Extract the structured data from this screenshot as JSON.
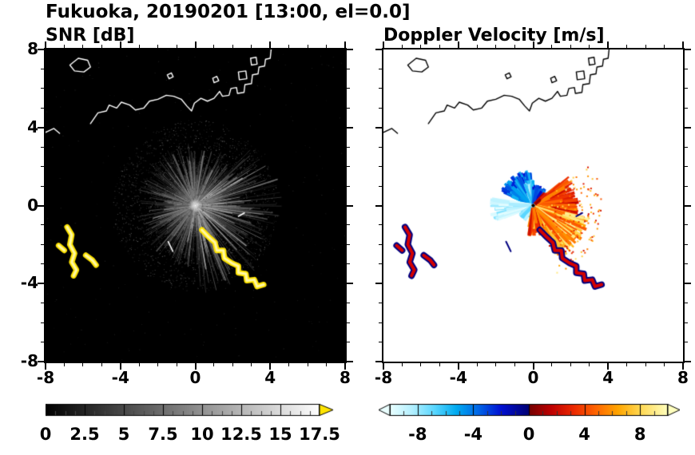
{
  "title": "Fukuoka, 20190201 [13:00, el=0.0]",
  "chart_data": {
    "type": "heatmap",
    "title": "Fukuoka, 20190201 [13:00, el=0.0]",
    "layout": {
      "grid": false,
      "panels_side_by_side": true,
      "colorbar_position": "bottom"
    },
    "panels": [
      {
        "name": "snr",
        "title": "SNR [dB]",
        "xlim": [
          -8,
          8
        ],
        "ylim": [
          -8,
          8
        ],
        "xticks": [
          -8,
          -4,
          0,
          4,
          8
        ],
        "yticks": [
          -8,
          -4,
          0,
          4,
          8
        ],
        "background": "#000000",
        "colorbar": {
          "vmin": 0,
          "vmax": 17.5,
          "tick_values": [
            0,
            2.5,
            5,
            7.5,
            10,
            12.5,
            15,
            17.5
          ],
          "tick_labels": [
            "0",
            "2.5",
            "5",
            "7.5",
            "10",
            "12.5",
            "15",
            "17.5"
          ],
          "colormap": "grayscale",
          "over_arrow_color": "#ffe400"
        }
      },
      {
        "name": "doppler_velocity",
        "title": "Doppler Velocity [m/s]",
        "xlim": [
          -8,
          8
        ],
        "ylim": [
          -8,
          8
        ],
        "xticks": [
          -8,
          -4,
          0,
          4,
          8
        ],
        "yticks": [
          -8,
          -4,
          0,
          4,
          8
        ],
        "background": "#ffffff",
        "colorbar": {
          "vmin": -10,
          "vmax": 10,
          "tick_values": [
            -8,
            -4,
            0,
            4,
            8
          ],
          "tick_labels": [
            "-8",
            "-4",
            "0",
            "4",
            "8"
          ],
          "colormap": "velocity"
        }
      }
    ],
    "velocity_colormap_stops": [
      [
        0.0,
        "#eaffff"
      ],
      [
        0.08,
        "#b4f0ff"
      ],
      [
        0.16,
        "#5ad7ff"
      ],
      [
        0.24,
        "#00aaf0"
      ],
      [
        0.32,
        "#0064e6"
      ],
      [
        0.4,
        "#0010d2"
      ],
      [
        0.4999,
        "#000073"
      ],
      [
        0.5,
        "#730000"
      ],
      [
        0.58,
        "#bd0000"
      ],
      [
        0.66,
        "#eb2800"
      ],
      [
        0.74,
        "#ff6400"
      ],
      [
        0.82,
        "#ffa500"
      ],
      [
        0.9,
        "#ffd750"
      ],
      [
        1.0,
        "#ffffbe"
      ]
    ],
    "radar_center": [
      0,
      0
    ],
    "snr_echo": {
      "ray_count": 1100,
      "speckle_count": 2600,
      "bright_azimuth": [
        45,
        180
      ],
      "max_range": 4.4
    },
    "velocity_sectors": [
      {
        "az": [
          292,
          356
        ],
        "v": [
          -6,
          -2
        ],
        "rmax": 1.9,
        "density": 1.0
      },
      {
        "az": [
          336,
          360
        ],
        "v": [
          -8.5,
          -5
        ],
        "rmax": 1.35,
        "density": 0.8
      },
      {
        "az": [
          0,
          40
        ],
        "v": [
          -4.5,
          -1.5
        ],
        "rmax": 1.1,
        "density": 0.55
      },
      {
        "az": [
          248,
          280
        ],
        "v": [
          -10,
          -7.5
        ],
        "rmax": 2.35,
        "density": 0.9
      },
      {
        "az": [
          198,
          242
        ],
        "v": [
          -9,
          -6
        ],
        "rmax": 0.9,
        "density": 0.3
      },
      {
        "az": [
          52,
          100
        ],
        "v": [
          1.5,
          6
        ],
        "rmax": 2.45,
        "density": 0.95
      },
      {
        "az": [
          100,
          152
        ],
        "v": [
          4,
          9.5
        ],
        "rmax": 3.1,
        "density": 0.9
      },
      {
        "az": [
          152,
          192
        ],
        "v": [
          2,
          7.5
        ],
        "rmax": 1.6,
        "density": 0.55
      },
      {
        "az": [
          40,
          52
        ],
        "v": [
          0.5,
          3
        ],
        "rmax": 1.0,
        "density": 0.45
      }
    ],
    "warm_scatter": {
      "az": [
        55,
        160
      ],
      "rmax": 3.7,
      "count": 150
    },
    "coastline": [
      {
        "closed": false,
        "pts": [
          [
            -8,
            3.75
          ],
          [
            -7.55,
            3.95
          ],
          [
            -7.25,
            3.7
          ]
        ]
      },
      {
        "closed": true,
        "pts": [
          [
            -6.7,
            7.2
          ],
          [
            -6.25,
            7.55
          ],
          [
            -5.75,
            7.45
          ],
          [
            -5.6,
            7.1
          ],
          [
            -5.95,
            6.85
          ],
          [
            -6.45,
            6.9
          ]
        ]
      },
      {
        "closed": false,
        "pts": [
          [
            -5.6,
            4.2
          ],
          [
            -5.2,
            4.75
          ],
          [
            -4.75,
            4.85
          ],
          [
            -4.6,
            5.15
          ],
          [
            -4.2,
            5.0
          ],
          [
            -3.95,
            5.3
          ],
          [
            -3.5,
            5.15
          ],
          [
            -3.2,
            4.9
          ],
          [
            -2.75,
            5.0
          ],
          [
            -2.45,
            5.35
          ],
          [
            -2.0,
            5.45
          ],
          [
            -1.55,
            5.65
          ],
          [
            -1.15,
            5.6
          ],
          [
            -0.75,
            5.45
          ],
          [
            -0.45,
            5.1
          ],
          [
            -0.2,
            4.85
          ],
          [
            -0.05,
            5.25
          ],
          [
            0.3,
            5.5
          ],
          [
            0.65,
            5.35
          ],
          [
            1.0,
            5.5
          ],
          [
            1.3,
            5.85
          ],
          [
            1.45,
            5.6
          ],
          [
            1.8,
            5.65
          ],
          [
            1.9,
            6.0
          ],
          [
            2.2,
            6.05
          ],
          [
            2.25,
            5.75
          ],
          [
            2.6,
            5.8
          ],
          [
            2.65,
            6.2
          ],
          [
            3.0,
            6.25
          ],
          [
            3.05,
            6.7
          ],
          [
            3.35,
            6.75
          ],
          [
            3.4,
            7.1
          ],
          [
            3.7,
            7.15
          ],
          [
            3.75,
            7.5
          ],
          [
            4.0,
            7.55
          ],
          [
            4.05,
            8.0
          ]
        ]
      },
      {
        "closed": true,
        "pts": [
          [
            2.35,
            6.45
          ],
          [
            2.75,
            6.5
          ],
          [
            2.7,
            6.9
          ],
          [
            2.3,
            6.85
          ]
        ]
      },
      {
        "closed": true,
        "pts": [
          [
            3.0,
            7.2
          ],
          [
            3.3,
            7.25
          ],
          [
            3.25,
            7.6
          ],
          [
            2.95,
            7.55
          ]
        ]
      },
      {
        "closed": true,
        "pts": [
          [
            1.0,
            6.3
          ],
          [
            1.25,
            6.4
          ],
          [
            1.15,
            6.62
          ],
          [
            0.93,
            6.52
          ]
        ]
      },
      {
        "closed": true,
        "pts": [
          [
            -1.4,
            6.5
          ],
          [
            -1.18,
            6.6
          ],
          [
            -1.28,
            6.8
          ],
          [
            -1.5,
            6.7
          ]
        ]
      }
    ],
    "clutter_chains": [
      [
        [
          -6.85,
          -1.1
        ],
        [
          -6.6,
          -1.5
        ],
        [
          -6.7,
          -2.0
        ],
        [
          -6.45,
          -2.45
        ],
        [
          -6.6,
          -2.9
        ],
        [
          -6.35,
          -3.3
        ],
        [
          -6.5,
          -3.6
        ]
      ],
      [
        [
          -7.3,
          -2.05
        ],
        [
          -7.0,
          -2.3
        ]
      ],
      [
        [
          -5.85,
          -2.55
        ],
        [
          -5.5,
          -2.8
        ],
        [
          -5.3,
          -3.05
        ]
      ],
      [
        [
          0.35,
          -1.25
        ],
        [
          0.7,
          -1.6
        ],
        [
          1.05,
          -1.9
        ],
        [
          1.15,
          -2.3
        ],
        [
          1.5,
          -2.3
        ],
        [
          1.55,
          -2.7
        ],
        [
          1.95,
          -2.95
        ],
        [
          2.3,
          -3.1
        ],
        [
          2.3,
          -3.45
        ],
        [
          2.7,
          -3.5
        ],
        [
          2.75,
          -3.85
        ],
        [
          3.15,
          -3.8
        ],
        [
          3.3,
          -4.15
        ],
        [
          3.65,
          -4.05
        ]
      ]
    ],
    "thin_streaks": [
      [
        [
          -1.45,
          -1.85
        ],
        [
          -1.2,
          -2.35
        ]
      ],
      [
        [
          2.3,
          -0.55
        ],
        [
          2.62,
          -0.38
        ]
      ]
    ]
  }
}
